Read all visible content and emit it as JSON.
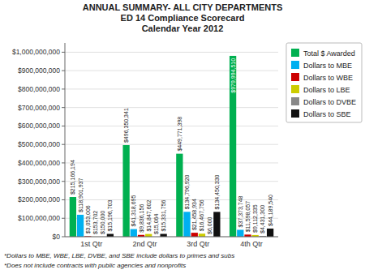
{
  "chart_data": {
    "type": "bar",
    "title": "ANNUAL SUMMARY- ALL CITY DEPARTMENTS\nED 14 Compliance Scorecard\nCalendar Year 2012",
    "categories": [
      "1st Qtr",
      "2nd Qtr",
      "3rd Qtr",
      "4th Qtr"
    ],
    "series": [
      {
        "name": "Total $ Awarded",
        "color": "#00B050",
        "values": [
          215166194,
          496350341,
          449771398,
          979994510
        ],
        "value_labels": [
          "$215,166,194",
          "$496,350,341",
          "$449,771,398",
          "$979,994,510"
        ]
      },
      {
        "name": "Dollars to MBE",
        "color": "#00B0F0",
        "values": [
          118901937,
          41318695,
          134796920,
          37373748
        ],
        "value_labels": [
          "$118,901,937",
          "$41,318,695",
          "$134,796,920",
          "$37,373,748"
        ]
      },
      {
        "name": "Dollars to WBE",
        "color": "#CC0000",
        "values": [
          3053006,
          9836156,
          21458934,
          11598057
        ],
        "value_labels": [
          "$3,053,006",
          "$9,836,156",
          "$21,458,934",
          "$11,598,057"
        ]
      },
      {
        "name": "Dollars to LBE",
        "color": "#CCCC00",
        "values": [
          153702,
          14847602,
          16467756,
          9112335
        ],
        "value_labels": [
          "$153,702",
          "$14,847,602",
          "$16,467,756",
          "$9,112,335"
        ]
      },
      {
        "name": "Dollars to DVBE",
        "color": "#888888",
        "values": [
          150000,
          15064,
          6000,
          4431300
        ],
        "value_labels": [
          "$150,000",
          "$15,064",
          "$6,000",
          "$4,431,300"
        ]
      },
      {
        "name": "Dollars to SBE",
        "color": "#111111",
        "values": [
          15196703,
          15331756,
          134450330,
          44189540
        ],
        "value_labels": [
          "$15,196,703",
          "$15,331,756",
          "$134,450,330",
          "$44,189,540"
        ]
      }
    ],
    "ylim": [
      0,
      1050000000
    ],
    "yticks": [
      {
        "value": 0,
        "label": "$0"
      },
      {
        "value": 100000000,
        "label": "$100,000,000"
      },
      {
        "value": 200000000,
        "label": "$200,000,000"
      },
      {
        "value": 300000000,
        "label": "$300,000,000"
      },
      {
        "value": 400000000,
        "label": "$400,000,000"
      },
      {
        "value": 500000000,
        "label": "$500,000,000"
      },
      {
        "value": 600000000,
        "label": "$600,000,000"
      },
      {
        "value": 700000000,
        "label": "$700,000,000"
      },
      {
        "value": 800000000,
        "label": "$800,000,000"
      },
      {
        "value": 900000000,
        "label": "$900,000,000"
      },
      {
        "value": 1000000000,
        "label": "$1,000,000,000"
      }
    ],
    "annotations": [
      "*Dollars to MBE, WBE, LBE, DVBE, and SBE include dollars to primes and subs",
      "*Does not include contracts with public agencies and nonprofits"
    ],
    "grid": true,
    "legend": "right",
    "data_labels": true
  }
}
